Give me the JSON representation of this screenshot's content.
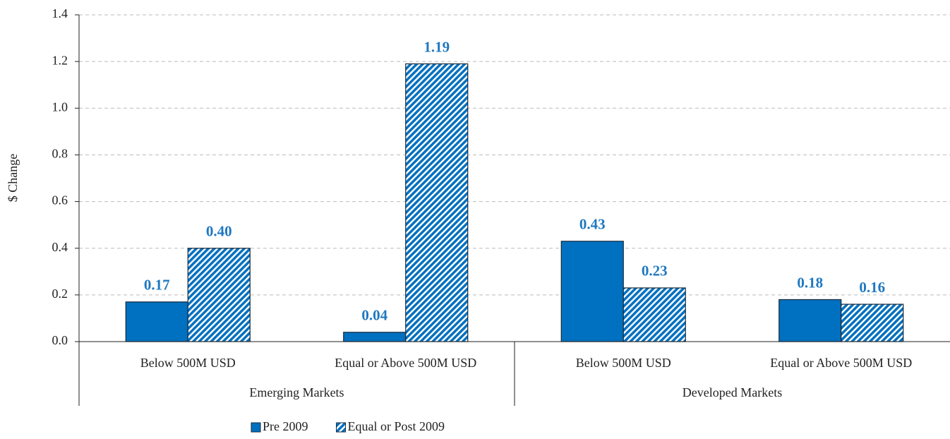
{
  "chart_data": {
    "type": "bar",
    "y_label": "$ Change",
    "categories": [
      "Below 500M USD",
      "Equal or Above 500M USD",
      "Below 500M USD",
      "Equal or Above 500M USD"
    ],
    "groups": [
      "Emerging Markets",
      "Emerging Markets",
      "Developed Markets",
      "Developed Markets"
    ],
    "series": [
      {
        "name": "Pre 2009",
        "color": "#0070c0",
        "fill": "solid",
        "values": [
          0.17,
          0.04,
          0.43,
          0.18
        ],
        "value_labels": [
          "0.17",
          "0.04",
          "0.43",
          "0.18"
        ]
      },
      {
        "name": "Equal or Post 2009",
        "color": "#0070c0",
        "fill": "hatch",
        "values": [
          0.4,
          1.19,
          0.23,
          0.16
        ],
        "value_labels": [
          "0.40",
          "1.19",
          "0.23",
          "0.16"
        ]
      }
    ],
    "ylim": [
      0,
      1.4
    ],
    "yticks": [
      {
        "value": 0,
        "label": "0.0"
      },
      0.2,
      0.4,
      0.6,
      0.8,
      {
        "value": 1,
        "label": "1.0"
      },
      1.2,
      1.4
    ],
    "grid": true,
    "legend": "bottom"
  }
}
